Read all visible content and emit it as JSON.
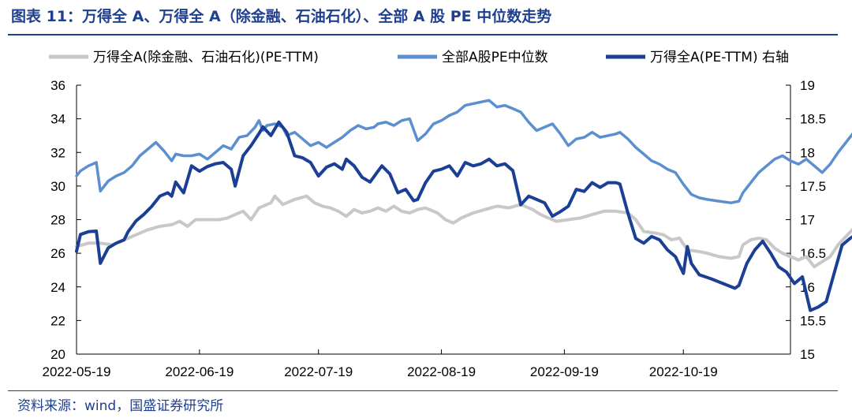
{
  "header": {
    "title": "图表 11：万得全 A、万得全 A（除金融、石油石化）、全部 A 股 PE 中位数走势"
  },
  "footer": {
    "source": "资料来源：wind，国盛证券研究所"
  },
  "chart_data": {
    "type": "line",
    "title": "图表 11：万得全 A、万得全 A（除金融、石油石化）、全部 A 股 PE 中位数走势",
    "x_tick_labels": [
      "2022-05-19",
      "2022-06-19",
      "2022-07-19",
      "2022-08-19",
      "2022-09-19",
      "2022-10-19"
    ],
    "x_tick_days": [
      0,
      31,
      61,
      92,
      123,
      153
    ],
    "x_range_days": [
      0,
      180
    ],
    "y_left": {
      "range": [
        20,
        36
      ],
      "ticks": [
        "20",
        "22",
        "24",
        "26",
        "28",
        "30",
        "32",
        "34",
        "36"
      ]
    },
    "y_right": {
      "label": "右轴",
      "range": [
        15,
        19
      ],
      "ticks": [
        "15",
        "15.5",
        "16",
        "16.5",
        "17",
        "17.5",
        "18",
        "18.5",
        "19"
      ]
    },
    "grid": false,
    "legend_position": "top",
    "series": [
      {
        "name": "万得全A(除金融、石油石化)(PE-TTM)",
        "axis": "left",
        "color": "#c8c8c8",
        "points": [
          [
            0,
            26.4
          ],
          [
            3,
            26.6
          ],
          [
            6,
            26.6
          ],
          [
            9,
            26.5
          ],
          [
            12,
            26.8
          ],
          [
            15,
            27.1
          ],
          [
            18,
            27.4
          ],
          [
            21,
            27.6
          ],
          [
            24,
            27.7
          ],
          [
            26,
            27.9
          ],
          [
            28,
            27.6
          ],
          [
            30,
            28.0
          ],
          [
            33,
            28.0
          ],
          [
            36,
            28.0
          ],
          [
            38,
            28.1
          ],
          [
            40,
            28.3
          ],
          [
            42,
            28.5
          ],
          [
            44,
            28.0
          ],
          [
            46,
            28.7
          ],
          [
            49,
            29.0
          ],
          [
            50,
            29.4
          ],
          [
            52,
            28.9
          ],
          [
            55,
            29.2
          ],
          [
            58,
            29.4
          ],
          [
            60,
            29.0
          ],
          [
            62,
            28.8
          ],
          [
            64,
            28.7
          ],
          [
            66,
            28.5
          ],
          [
            68,
            28.2
          ],
          [
            70,
            28.6
          ],
          [
            72,
            28.4
          ],
          [
            74,
            28.5
          ],
          [
            76,
            28.7
          ],
          [
            78,
            28.5
          ],
          [
            80,
            28.8
          ],
          [
            82,
            28.5
          ],
          [
            84,
            28.4
          ],
          [
            86,
            28.6
          ],
          [
            88,
            28.7
          ],
          [
            91,
            28.4
          ],
          [
            93,
            28.0
          ],
          [
            95,
            27.8
          ],
          [
            97,
            28.1
          ],
          [
            100,
            28.4
          ],
          [
            103,
            28.6
          ],
          [
            106,
            28.8
          ],
          [
            109,
            28.7
          ],
          [
            112,
            28.9
          ],
          [
            115,
            28.6
          ],
          [
            117,
            28.3
          ],
          [
            119,
            28.1
          ],
          [
            121,
            27.9
          ],
          [
            124,
            28.0
          ],
          [
            127,
            28.1
          ],
          [
            130,
            28.3
          ],
          [
            133,
            28.5
          ],
          [
            136,
            28.5
          ],
          [
            139,
            28.4
          ],
          [
            141,
            28.0
          ],
          [
            143,
            27.3
          ],
          [
            146,
            27.2
          ],
          [
            148,
            27.1
          ],
          [
            150,
            26.8
          ],
          [
            152,
            26.9
          ],
          [
            154,
            26.2
          ],
          [
            157,
            26.1
          ],
          [
            159,
            26.0
          ],
          [
            162,
            25.8
          ],
          [
            165,
            25.7
          ],
          [
            167,
            25.8
          ],
          [
            168,
            26.5
          ],
          [
            170,
            26.8
          ],
          [
            172,
            26.9
          ],
          [
            174,
            26.8
          ],
          [
            176,
            26.3
          ],
          [
            178,
            26.0
          ],
          [
            180,
            25.8
          ],
          [
            182,
            25.6
          ],
          [
            184,
            25.8
          ],
          [
            186,
            25.2
          ],
          [
            188,
            25.5
          ],
          [
            190,
            25.8
          ],
          [
            192,
            26.5
          ],
          [
            194,
            27.0
          ],
          [
            196,
            27.5
          ],
          [
            198,
            27.6
          ],
          [
            200,
            27.2
          ],
          [
            202,
            27.3
          ],
          [
            204,
            27.5
          ]
        ]
      },
      {
        "name": "全部A股PE中位数",
        "axis": "left",
        "color": "#5b8fd0",
        "points": [
          [
            0,
            30.6
          ],
          [
            1,
            30.9
          ],
          [
            3,
            31.2
          ],
          [
            5,
            31.4
          ],
          [
            6,
            29.7
          ],
          [
            8,
            30.3
          ],
          [
            10,
            30.6
          ],
          [
            12,
            30.8
          ],
          [
            14,
            31.2
          ],
          [
            16,
            31.8
          ],
          [
            18,
            32.2
          ],
          [
            20,
            32.6
          ],
          [
            22,
            32.1
          ],
          [
            24,
            31.5
          ],
          [
            25,
            31.9
          ],
          [
            27,
            31.8
          ],
          [
            29,
            31.8
          ],
          [
            31,
            31.9
          ],
          [
            33,
            31.6
          ],
          [
            35,
            32.0
          ],
          [
            37,
            32.4
          ],
          [
            39,
            32.2
          ],
          [
            41,
            32.9
          ],
          [
            43,
            33.0
          ],
          [
            45,
            33.5
          ],
          [
            46,
            33.9
          ],
          [
            47,
            33.3
          ],
          [
            48,
            33.6
          ],
          [
            50,
            33.7
          ],
          [
            52,
            33.5
          ],
          [
            53,
            33.0
          ],
          [
            55,
            33.2
          ],
          [
            57,
            32.8
          ],
          [
            59,
            32.4
          ],
          [
            61,
            32.6
          ],
          [
            63,
            32.3
          ],
          [
            65,
            32.6
          ],
          [
            67,
            32.9
          ],
          [
            69,
            33.3
          ],
          [
            71,
            33.6
          ],
          [
            73,
            33.4
          ],
          [
            75,
            33.5
          ],
          [
            76,
            33.7
          ],
          [
            78,
            33.8
          ],
          [
            80,
            33.6
          ],
          [
            82,
            33.9
          ],
          [
            84,
            34.0
          ],
          [
            86,
            32.7
          ],
          [
            88,
            33.1
          ],
          [
            90,
            33.7
          ],
          [
            92,
            33.9
          ],
          [
            94,
            34.2
          ],
          [
            96,
            34.4
          ],
          [
            98,
            34.8
          ],
          [
            100,
            34.9
          ],
          [
            102,
            35.0
          ],
          [
            104,
            35.1
          ],
          [
            106,
            34.7
          ],
          [
            108,
            34.8
          ],
          [
            110,
            34.6
          ],
          [
            112,
            34.4
          ],
          [
            114,
            33.8
          ],
          [
            116,
            33.3
          ],
          [
            118,
            33.5
          ],
          [
            120,
            33.7
          ],
          [
            122,
            33.1
          ],
          [
            124,
            32.4
          ],
          [
            126,
            32.8
          ],
          [
            128,
            32.9
          ],
          [
            130,
            33.2
          ],
          [
            132,
            32.9
          ],
          [
            134,
            33.0
          ],
          [
            136,
            33.1
          ],
          [
            137,
            33.2
          ],
          [
            139,
            32.8
          ],
          [
            141,
            32.3
          ],
          [
            143,
            31.9
          ],
          [
            145,
            31.5
          ],
          [
            147,
            31.3
          ],
          [
            149,
            31.0
          ],
          [
            151,
            30.8
          ],
          [
            153,
            30.1
          ],
          [
            155,
            29.5
          ],
          [
            157,
            29.3
          ],
          [
            159,
            29.2
          ],
          [
            162,
            29.1
          ],
          [
            165,
            29.0
          ],
          [
            167,
            29.1
          ],
          [
            168,
            29.6
          ],
          [
            170,
            30.2
          ],
          [
            172,
            30.8
          ],
          [
            174,
            31.2
          ],
          [
            176,
            31.6
          ],
          [
            178,
            31.8
          ],
          [
            180,
            31.5
          ],
          [
            182,
            31.3
          ],
          [
            184,
            31.6
          ],
          [
            186,
            31.2
          ],
          [
            188,
            30.8
          ],
          [
            190,
            31.3
          ],
          [
            192,
            32.0
          ],
          [
            194,
            32.6
          ],
          [
            196,
            33.2
          ],
          [
            198,
            33.5
          ],
          [
            200,
            33.4
          ],
          [
            202,
            33.3
          ],
          [
            204,
            33.2
          ]
        ]
      },
      {
        "name": "万得全A(PE-TTM) 右轴",
        "axis": "right",
        "color": "#1a3f95",
        "points": [
          [
            0,
            16.53
          ],
          [
            1,
            16.78
          ],
          [
            3,
            16.82
          ],
          [
            5,
            16.83
          ],
          [
            6,
            16.35
          ],
          [
            8,
            16.58
          ],
          [
            10,
            16.65
          ],
          [
            12,
            16.7
          ],
          [
            13,
            16.82
          ],
          [
            15,
            16.98
          ],
          [
            17,
            17.08
          ],
          [
            19,
            17.2
          ],
          [
            21,
            17.35
          ],
          [
            23,
            17.4
          ],
          [
            24,
            17.35
          ],
          [
            25,
            17.56
          ],
          [
            27,
            17.4
          ],
          [
            29,
            17.8
          ],
          [
            31,
            17.72
          ],
          [
            33,
            17.79
          ],
          [
            35,
            17.83
          ],
          [
            37,
            17.85
          ],
          [
            39,
            17.75
          ],
          [
            40,
            17.5
          ],
          [
            42,
            17.95
          ],
          [
            44,
            18.1
          ],
          [
            46,
            18.28
          ],
          [
            47,
            18.38
          ],
          [
            49,
            18.25
          ],
          [
            51,
            18.45
          ],
          [
            53,
            18.3
          ],
          [
            55,
            17.95
          ],
          [
            57,
            17.92
          ],
          [
            59,
            17.85
          ],
          [
            61,
            17.65
          ],
          [
            63,
            17.78
          ],
          [
            65,
            17.83
          ],
          [
            67,
            17.75
          ],
          [
            68,
            17.9
          ],
          [
            70,
            17.8
          ],
          [
            72,
            17.63
          ],
          [
            74,
            17.56
          ],
          [
            76,
            17.72
          ],
          [
            77,
            17.8
          ],
          [
            79,
            17.68
          ],
          [
            81,
            17.4
          ],
          [
            83,
            17.45
          ],
          [
            85,
            17.28
          ],
          [
            86,
            17.3
          ],
          [
            88,
            17.55
          ],
          [
            90,
            17.72
          ],
          [
            92,
            17.75
          ],
          [
            94,
            17.8
          ],
          [
            96,
            17.65
          ],
          [
            98,
            17.85
          ],
          [
            100,
            17.8
          ],
          [
            102,
            17.83
          ],
          [
            104,
            17.9
          ],
          [
            106,
            17.8
          ],
          [
            108,
            17.83
          ],
          [
            110,
            17.73
          ],
          [
            112,
            17.22
          ],
          [
            114,
            17.35
          ],
          [
            116,
            17.3
          ],
          [
            118,
            17.25
          ],
          [
            120,
            17.05
          ],
          [
            122,
            17.12
          ],
          [
            124,
            17.2
          ],
          [
            126,
            17.45
          ],
          [
            128,
            17.42
          ],
          [
            130,
            17.55
          ],
          [
            132,
            17.48
          ],
          [
            134,
            17.55
          ],
          [
            136,
            17.55
          ],
          [
            137,
            17.53
          ],
          [
            139,
            17.1
          ],
          [
            141,
            16.72
          ],
          [
            143,
            16.65
          ],
          [
            145,
            16.75
          ],
          [
            147,
            16.7
          ],
          [
            149,
            16.55
          ],
          [
            151,
            16.45
          ],
          [
            153,
            16.2
          ],
          [
            154,
            16.6
          ],
          [
            155,
            16.35
          ],
          [
            157,
            16.18
          ],
          [
            160,
            16.12
          ],
          [
            163,
            16.05
          ],
          [
            166,
            15.98
          ],
          [
            167,
            16.02
          ],
          [
            169,
            16.35
          ],
          [
            171,
            16.55
          ],
          [
            173,
            16.68
          ],
          [
            175,
            16.5
          ],
          [
            177,
            16.3
          ],
          [
            179,
            16.22
          ],
          [
            181,
            16.05
          ],
          [
            183,
            16.15
          ],
          [
            185,
            15.65
          ],
          [
            187,
            15.7
          ],
          [
            189,
            15.78
          ],
          [
            191,
            16.2
          ],
          [
            193,
            16.62
          ],
          [
            195,
            16.72
          ],
          [
            197,
            16.8
          ],
          [
            199,
            16.65
          ],
          [
            201,
            16.55
          ],
          [
            203,
            16.75
          ],
          [
            204,
            16.82
          ]
        ]
      }
    ]
  }
}
